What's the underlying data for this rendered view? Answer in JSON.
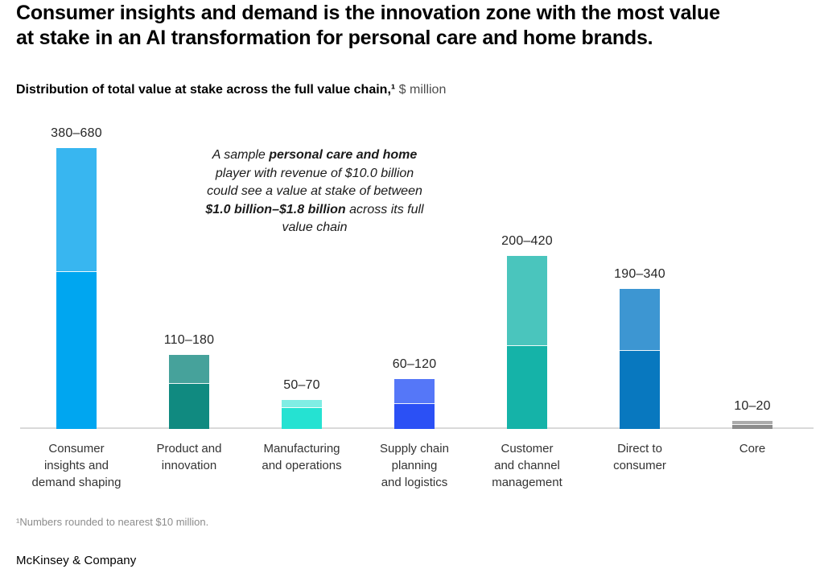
{
  "page": {
    "title": "Consumer insights and demand is the innovation zone with the most value\nat stake in an AI transformation for personal care and home brands.",
    "footnote": "¹Numbers rounded to nearest $10 million.",
    "footer": "McKinsey & Company"
  },
  "annotation": {
    "segments": [
      {
        "text": "A sample ",
        "bold": false
      },
      {
        "text": "personal care and home",
        "bold": true
      },
      {
        "text": "\nplayer with revenue of $10.0 billion\ncould see a value at stake of between\n",
        "bold": false
      },
      {
        "text": "$1.0 billion–$1.8 billion",
        "bold": true
      },
      {
        "text": " across its full\nvalue chain",
        "bold": false
      }
    ]
  },
  "chart_data": {
    "type": "bar",
    "subtype": "stacked-range",
    "title": "Distribution of total value at stake across the full value chain,¹",
    "unit_label": " $ million",
    "categories": [
      "Consumer\ninsights and\ndemand shaping",
      "Product and\ninnovation",
      "Manufacturing\nand operations",
      "Supply chain\nplanning\nand logistics",
      "Customer\nand channel\nmanagement",
      "Direct to\nconsumer",
      "Core"
    ],
    "series": [
      {
        "name": "low estimate",
        "values": [
          380,
          110,
          50,
          60,
          200,
          190,
          10
        ]
      },
      {
        "name": "high estimate",
        "values": [
          680,
          180,
          70,
          120,
          420,
          340,
          20
        ]
      }
    ],
    "bar_labels": [
      "380–680",
      "110–180",
      "50–70",
      "60–120",
      "200–420",
      "190–340",
      "10–20"
    ],
    "colors": {
      "dark": [
        "#00a6f0",
        "#108a80",
        "#25e2d2",
        "#2b50f5",
        "#15b3a8",
        "#0878bf",
        "#8c8c8c"
      ],
      "light": [
        "#38b6f0",
        "#46a29b",
        "#80ede4",
        "#5577f8",
        "#4ac5bd",
        "#3d96d2",
        "#ababab"
      ]
    },
    "axis": {
      "baseline_color": "#d9d9d9",
      "grid": false,
      "legend": "none"
    },
    "ylim": [
      0,
      680
    ]
  }
}
